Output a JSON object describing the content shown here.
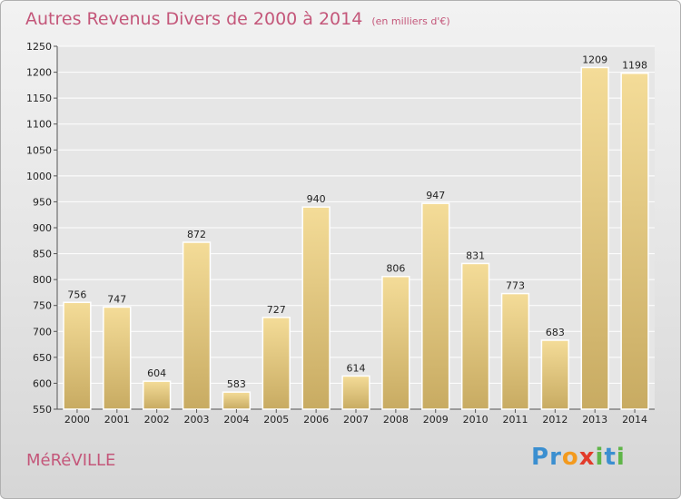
{
  "chart_data": {
    "type": "bar",
    "title": "Autres Revenus Divers de 2000 à 2014",
    "unit_label": "(en milliers d'€)",
    "categories": [
      "2000",
      "2001",
      "2002",
      "2003",
      "2004",
      "2005",
      "2006",
      "2007",
      "2008",
      "2009",
      "2010",
      "2011",
      "2012",
      "2013",
      "2014"
    ],
    "values": [
      756,
      747,
      604,
      872,
      583,
      727,
      940,
      614,
      806,
      947,
      831,
      773,
      683,
      1209,
      1198
    ],
    "ylim": [
      550,
      1250
    ],
    "yticks": [
      550,
      600,
      650,
      700,
      750,
      800,
      850,
      900,
      950,
      1000,
      1050,
      1100,
      1150,
      1200,
      1250
    ],
    "grid": true,
    "bar_color_top": "#f4dc98",
    "bar_color_bottom": "#c8ab62"
  },
  "footer": {
    "commune": "MéRéVILLE",
    "logo_letters": [
      {
        "char": "P",
        "color": "#3b8fd0"
      },
      {
        "char": "r",
        "color": "#3b8fd0"
      },
      {
        "char": "o",
        "color": "#f39a1e"
      },
      {
        "char": "x",
        "color": "#e23b2b"
      },
      {
        "char": "i",
        "color": "#5fb548"
      },
      {
        "char": "t",
        "color": "#3b8fd0"
      },
      {
        "char": "i",
        "color": "#5fb548"
      }
    ]
  }
}
